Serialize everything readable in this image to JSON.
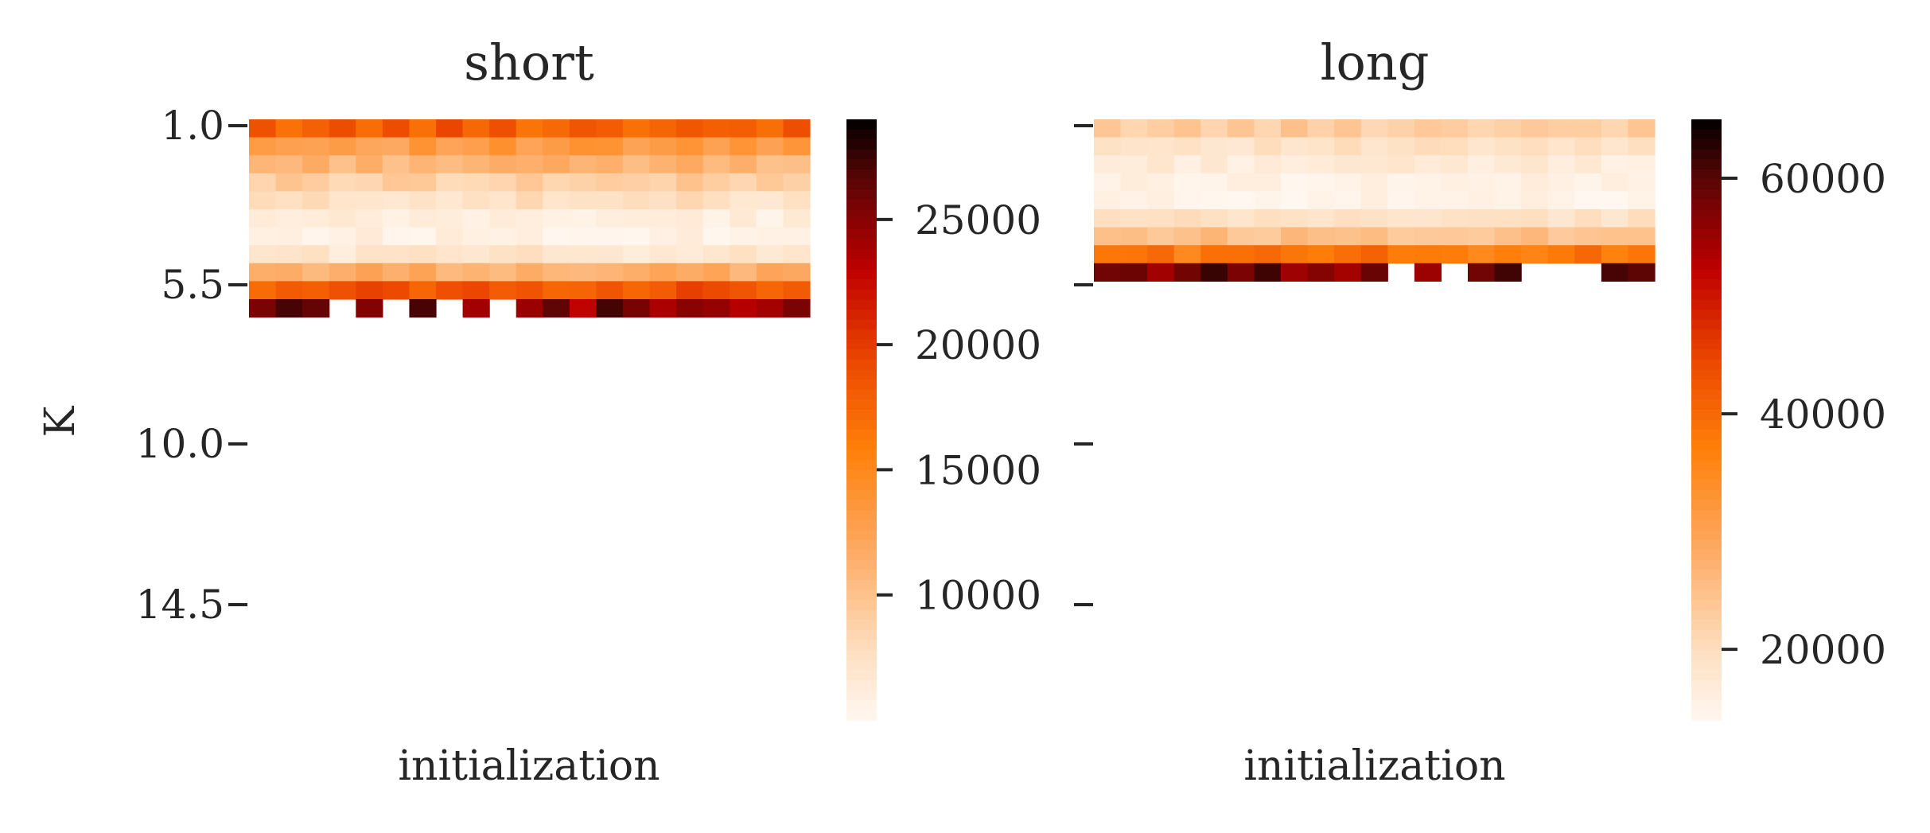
{
  "chart_data": [
    {
      "type": "heatmap",
      "title": "short",
      "xlabel": "initialization",
      "ylabel": "K",
      "yticks": [
        "1.0",
        "5.5",
        "10.0",
        "14.5"
      ],
      "y_range": [
        1,
        18
      ],
      "n_cols": 21,
      "cbar": {
        "ticks": [
          10000,
          15000,
          20000,
          25000
        ],
        "vmin": 5000,
        "vmax": 29000
      },
      "row_base": [
        18000,
        13000,
        11000,
        9000,
        7500,
        6000,
        5800,
        7000,
        11500,
        18500,
        25000
      ],
      "row_var": [
        1500,
        1200,
        1000,
        1000,
        900,
        800,
        800,
        900,
        1000,
        1500,
        2500
      ],
      "missing": [
        [
          10,
          3
        ],
        [
          10,
          5
        ],
        [
          10,
          7
        ],
        [
          10,
          9
        ]
      ]
    },
    {
      "type": "heatmap",
      "title": "long",
      "xlabel": "initialization",
      "ylabel": "",
      "yticks": [
        "",
        "",
        "",
        ""
      ],
      "y_range": [
        1,
        18
      ],
      "n_cols": 21,
      "cbar": {
        "ticks": [
          20000,
          40000,
          60000
        ],
        "vmin": 14000,
        "vmax": 65000
      },
      "row_base": [
        23000,
        19000,
        17000,
        15500,
        15000,
        19000,
        25000,
        38000,
        58000
      ],
      "row_var": [
        2000,
        1500,
        1500,
        1200,
        1200,
        1500,
        2000,
        3000,
        4000
      ],
      "missing": [
        [
          8,
          11
        ],
        [
          8,
          13
        ],
        [
          8,
          16
        ],
        [
          8,
          17
        ],
        [
          8,
          18
        ]
      ]
    }
  ]
}
